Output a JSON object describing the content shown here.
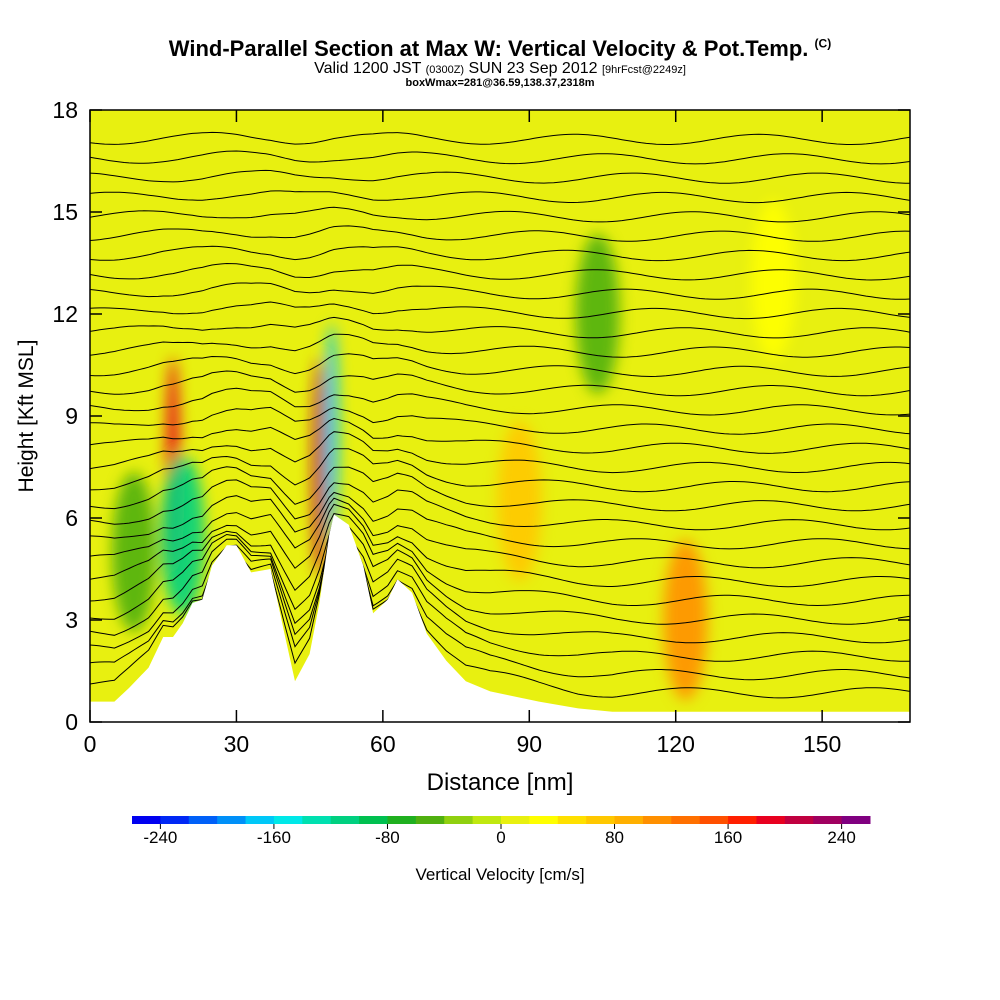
{
  "header": {
    "title": "Wind-Parallel Section at Max W: Vertical Velocity & Pot.Temp.",
    "copyright": "(C)",
    "valid_pre": "Valid 1200 JST",
    "valid_small1": "(0300Z)",
    "valid_mid": "SUN 23 Sep 2012",
    "valid_small2": "[9hrFcst@2249z]",
    "box": "boxWmax=281@36.59,138.37,2318m"
  },
  "chart_data": {
    "type": "heatmap",
    "xlabel": "Distance [nm]",
    "ylabel": "Height [Kft MSL]",
    "xlim": [
      0,
      168
    ],
    "ylim": [
      0,
      18
    ],
    "xticks": [
      0,
      30,
      60,
      90,
      120,
      150
    ],
    "yticks": [
      0,
      3,
      6,
      9,
      12,
      15,
      18
    ],
    "colorbar": {
      "label": "Vertical Velocity [cm/s]",
      "min": -260,
      "max": 260,
      "ticks": [
        -240,
        -160,
        -80,
        0,
        80,
        160,
        240
      ],
      "colors": [
        "#0000f0",
        "#0028f5",
        "#0060f8",
        "#0090f8",
        "#00c8f8",
        "#00e8e8",
        "#00e0b0",
        "#00d080",
        "#00c050",
        "#20b020",
        "#50b010",
        "#90d010",
        "#c0e810",
        "#e8f010",
        "#ffff00",
        "#ffe000",
        "#ffc800",
        "#ffb000",
        "#ff9000",
        "#ff7000",
        "#ff5000",
        "#ff2000",
        "#e80020",
        "#c00040",
        "#a00060",
        "#800080"
      ]
    },
    "terrain_profile": [
      [
        0,
        0.6
      ],
      [
        5,
        0.6
      ],
      [
        8,
        1.0
      ],
      [
        12,
        1.6
      ],
      [
        15,
        2.5
      ],
      [
        17,
        2.5
      ],
      [
        19,
        2.9
      ],
      [
        21,
        3.5
      ],
      [
        23,
        3.6
      ],
      [
        25,
        4.6
      ],
      [
        28,
        5.2
      ],
      [
        30,
        5.2
      ],
      [
        33,
        4.4
      ],
      [
        37,
        4.5
      ],
      [
        40,
        2.5
      ],
      [
        42,
        1.2
      ],
      [
        45,
        2.0
      ],
      [
        47,
        3.5
      ],
      [
        49,
        5.5
      ],
      [
        50,
        6.1
      ],
      [
        53,
        5.8
      ],
      [
        56,
        4.6
      ],
      [
        58,
        3.2
      ],
      [
        61,
        3.6
      ],
      [
        63,
        4.2
      ],
      [
        66,
        3.8
      ],
      [
        69,
        2.6
      ],
      [
        73,
        1.8
      ],
      [
        77,
        1.2
      ],
      [
        82,
        0.9
      ],
      [
        92,
        0.6
      ],
      [
        100,
        0.4
      ],
      [
        107,
        0.3
      ],
      [
        120,
        0.3
      ],
      [
        168,
        0.3
      ]
    ],
    "isentrope_count": 30,
    "isentrope_base_level": 0.6,
    "isentrope_spacing": 0.57,
    "velocity_features": [
      {
        "x": 17,
        "y": 7.5,
        "w": 180
      },
      {
        "x": 47,
        "y": 7.5,
        "w": 210
      },
      {
        "x": 49.5,
        "y": 8.5,
        "w": -180
      },
      {
        "x": 19,
        "y": 5.5,
        "w": -120
      },
      {
        "x": 88,
        "y": 6.5,
        "w": 60
      },
      {
        "x": 122,
        "y": 3.0,
        "w": 100
      },
      {
        "x": 104,
        "y": 12.0,
        "w": -60
      },
      {
        "x": 9,
        "y": 5.0,
        "w": -60
      },
      {
        "x": 140,
        "y": 13.0,
        "w": 30
      }
    ]
  }
}
